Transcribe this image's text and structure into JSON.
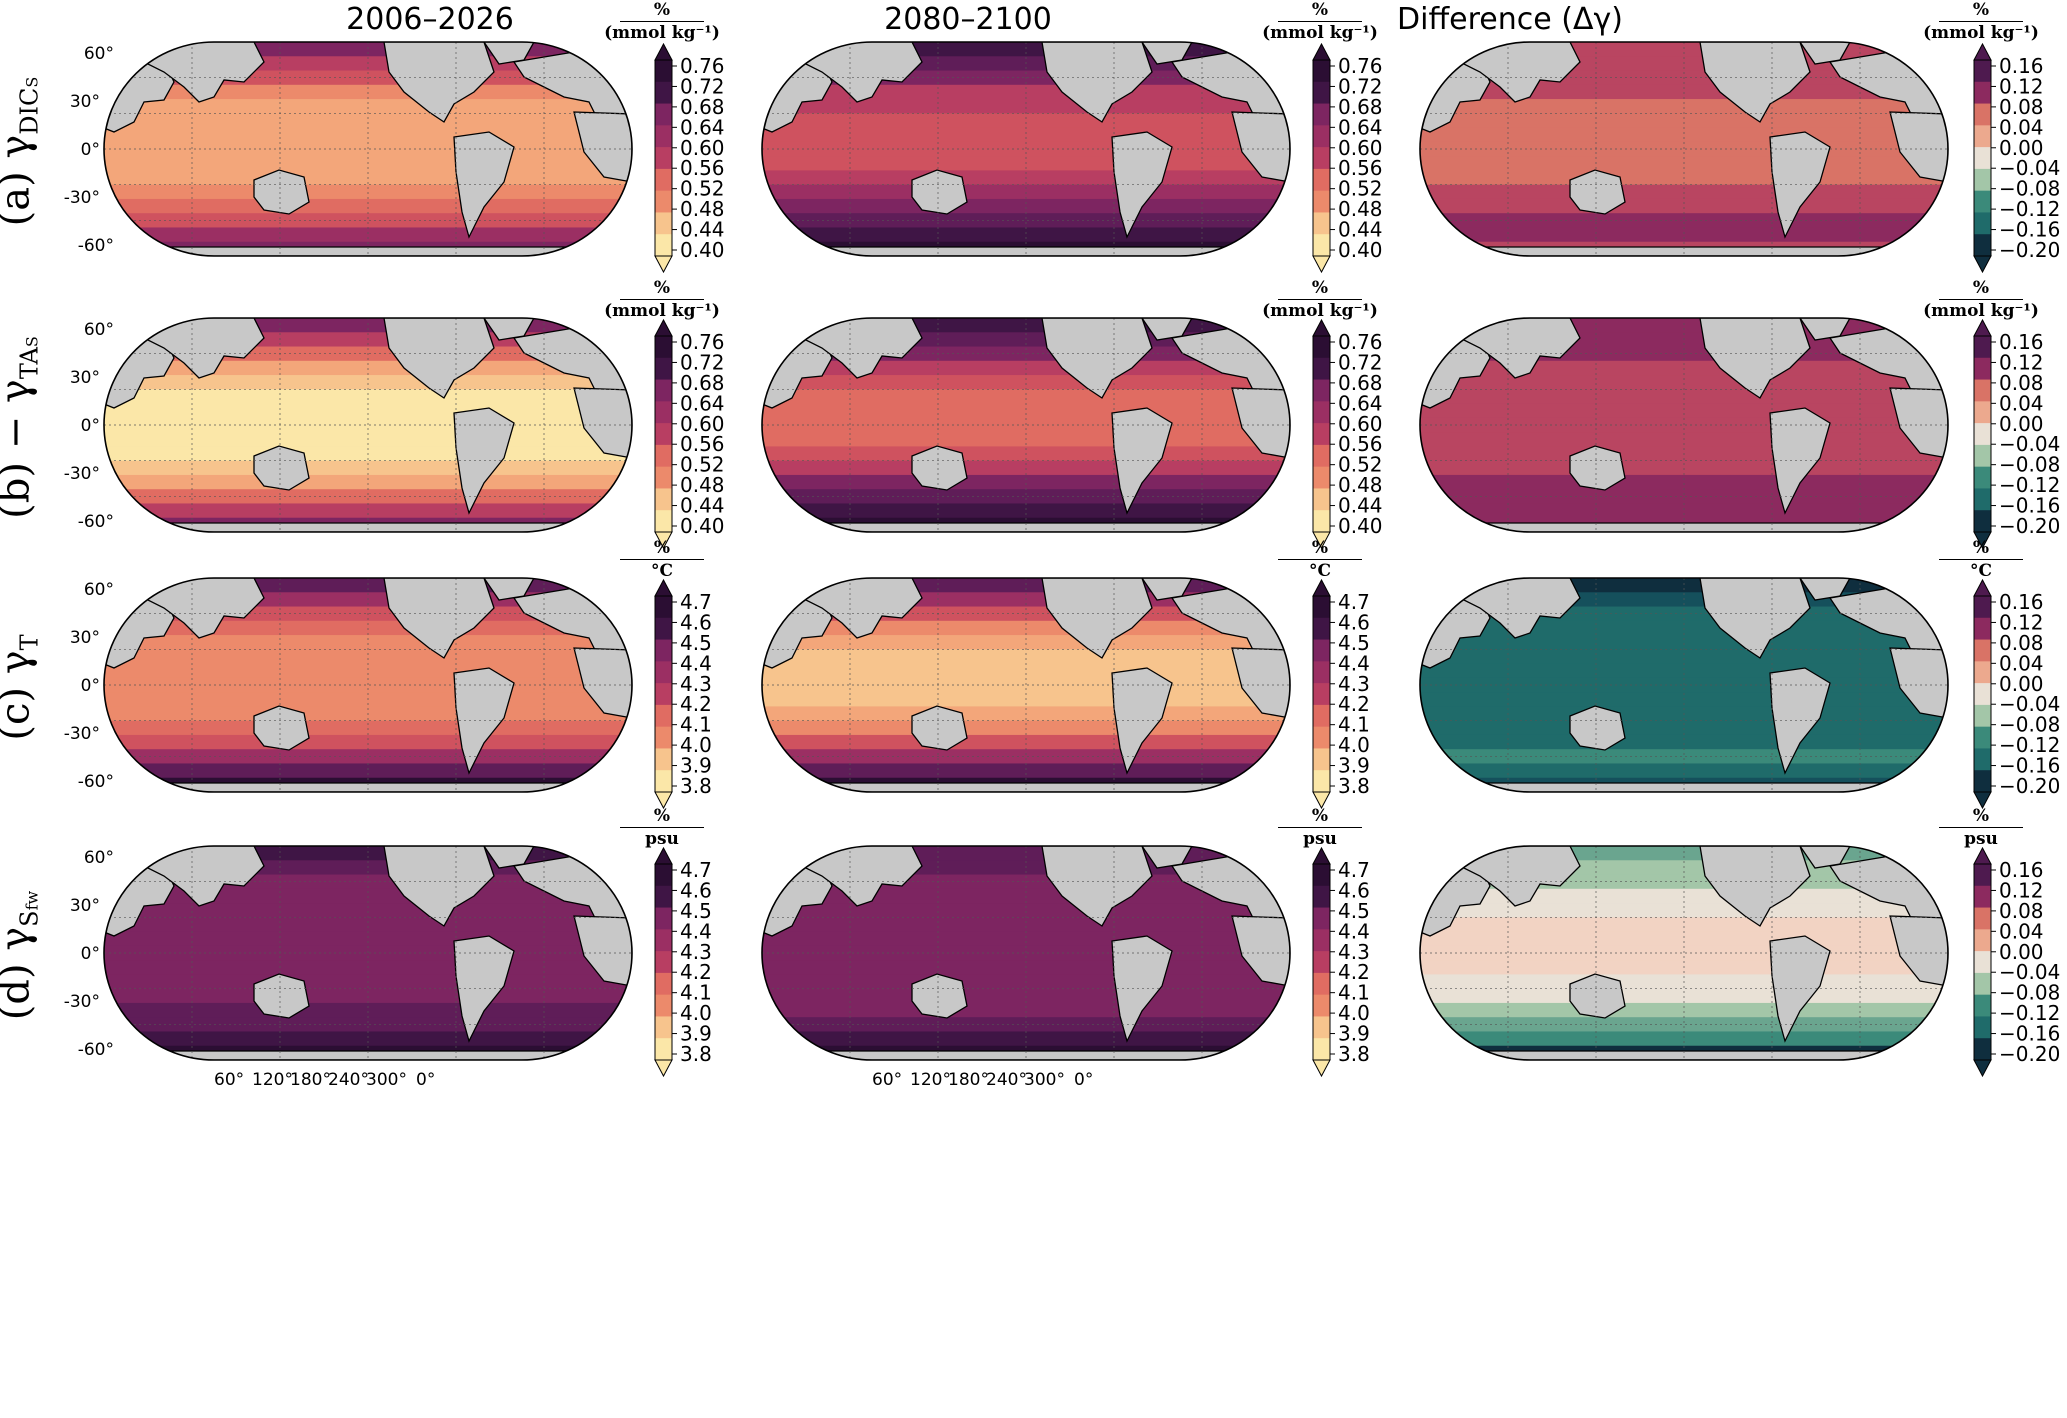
{
  "column_titles": [
    "2006–2026",
    "2080–2100",
    "Difference (Δγ)"
  ],
  "row_labels": [
    {
      "letter": "(a)",
      "gamma": "γ",
      "sub": "DIC",
      "subsub": "S",
      "prefix": ""
    },
    {
      "letter": "(b)",
      "gamma": "γ",
      "sub": "TA",
      "subsub": "S",
      "prefix": "− "
    },
    {
      "letter": "(c)",
      "gamma": "γ",
      "sub": "T",
      "subsub": "",
      "prefix": ""
    },
    {
      "letter": "(d)",
      "gamma": "γ",
      "sub": "S",
      "subsub": "fw",
      "prefix": ""
    }
  ],
  "units": [
    {
      "num": "%",
      "den": "(mmol kg⁻¹)"
    },
    {
      "num": "%",
      "den": "(mmol kg⁻¹)"
    },
    {
      "num": "%",
      "den": "°C"
    },
    {
      "num": "%",
      "den": "psu"
    }
  ],
  "lat_labels": [
    "60°",
    "30°",
    "0°",
    "-30°",
    "-60°"
  ],
  "lon_labels": [
    "60°",
    "120°",
    "180°",
    "240°",
    "300°",
    "0°"
  ],
  "colors": {
    "land": "#c8c8c8",
    "sequential": [
      "#fbe7a8",
      "#f7c48d",
      "#f3a67a",
      "#ec8a6b",
      "#e06c62",
      "#cf525f",
      "#b83e62",
      "#9b2f63",
      "#7d2561",
      "#5f1d58",
      "#3f1545",
      "#2b0e33"
    ],
    "diverging": [
      "#0f2e3e",
      "#15505c",
      "#1f6b6a",
      "#3b8a7a",
      "#6aa58f",
      "#a3c6a8",
      "#e9e1d6",
      "#f2d3c3",
      "#eca98e",
      "#d97366",
      "#b94561",
      "#8c2a5f",
      "#4e1a4f"
    ]
  },
  "chart_data": [
    {
      "type": "heatmap",
      "panel": "a-2006-2026",
      "colorbar_ticks": [
        "0.76",
        "0.72",
        "0.68",
        "0.64",
        "0.60",
        "0.56",
        "0.52",
        "0.48",
        "0.44",
        "0.40"
      ],
      "range": [
        0.4,
        0.76
      ]
    },
    {
      "type": "heatmap",
      "panel": "a-2080-2100",
      "colorbar_ticks": [
        "0.76",
        "0.72",
        "0.68",
        "0.64",
        "0.60",
        "0.56",
        "0.52",
        "0.48",
        "0.44",
        "0.40"
      ],
      "range": [
        0.4,
        0.76
      ]
    },
    {
      "type": "heatmap",
      "panel": "a-difference",
      "colorbar_ticks": [
        "0.16",
        "0.12",
        "0.08",
        "0.04",
        "0.00",
        "−0.04",
        "−0.08",
        "−0.12",
        "−0.16",
        "−0.20"
      ],
      "range": [
        -0.2,
        0.16
      ]
    },
    {
      "type": "heatmap",
      "panel": "b-2006-2026",
      "colorbar_ticks": [
        "0.76",
        "0.72",
        "0.68",
        "0.64",
        "0.60",
        "0.56",
        "0.52",
        "0.48",
        "0.44",
        "0.40"
      ],
      "range": [
        0.4,
        0.76
      ]
    },
    {
      "type": "heatmap",
      "panel": "b-2080-2100",
      "colorbar_ticks": [
        "0.76",
        "0.72",
        "0.68",
        "0.64",
        "0.60",
        "0.56",
        "0.52",
        "0.48",
        "0.44",
        "0.40"
      ],
      "range": [
        0.4,
        0.76
      ]
    },
    {
      "type": "heatmap",
      "panel": "b-difference",
      "colorbar_ticks": [
        "0.16",
        "0.12",
        "0.08",
        "0.04",
        "0.00",
        "−0.04",
        "−0.08",
        "−0.12",
        "−0.16",
        "−0.20"
      ],
      "range": [
        -0.2,
        0.16
      ]
    },
    {
      "type": "heatmap",
      "panel": "c-2006-2026",
      "colorbar_ticks": [
        "4.7",
        "4.6",
        "4.5",
        "4.4",
        "4.3",
        "4.2",
        "4.1",
        "4.0",
        "3.9",
        "3.8"
      ],
      "range": [
        3.8,
        4.7
      ]
    },
    {
      "type": "heatmap",
      "panel": "c-2080-2100",
      "colorbar_ticks": [
        "4.7",
        "4.6",
        "4.5",
        "4.4",
        "4.3",
        "4.2",
        "4.1",
        "4.0",
        "3.9",
        "3.8"
      ],
      "range": [
        3.8,
        4.7
      ]
    },
    {
      "type": "heatmap",
      "panel": "c-difference",
      "colorbar_ticks": [
        "0.16",
        "0.12",
        "0.08",
        "0.04",
        "0.00",
        "−0.04",
        "−0.08",
        "−0.12",
        "−0.16",
        "−0.20"
      ],
      "range": [
        -0.2,
        0.16
      ]
    },
    {
      "type": "heatmap",
      "panel": "d-2006-2026",
      "colorbar_ticks": [
        "4.7",
        "4.6",
        "4.5",
        "4.4",
        "4.3",
        "4.2",
        "4.1",
        "4.0",
        "3.9",
        "3.8"
      ],
      "range": [
        3.8,
        4.7
      ]
    },
    {
      "type": "heatmap",
      "panel": "d-2080-2100",
      "colorbar_ticks": [
        "4.7",
        "4.6",
        "4.5",
        "4.4",
        "4.3",
        "4.2",
        "4.1",
        "4.0",
        "3.9",
        "3.8"
      ],
      "range": [
        3.8,
        4.7
      ]
    },
    {
      "type": "heatmap",
      "panel": "d-difference",
      "colorbar_ticks": [
        "0.16",
        "0.12",
        "0.08",
        "0.04",
        "0.00",
        "−0.04",
        "−0.08",
        "−0.12",
        "−0.16",
        "−0.20"
      ],
      "range": [
        -0.2,
        0.16
      ]
    }
  ]
}
